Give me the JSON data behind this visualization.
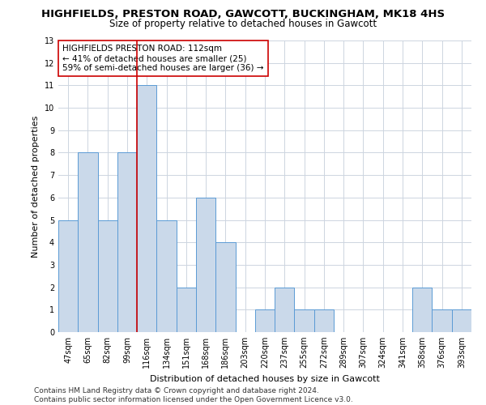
{
  "title": "HIGHFIELDS, PRESTON ROAD, GAWCOTT, BUCKINGHAM, MK18 4HS",
  "subtitle": "Size of property relative to detached houses in Gawcott",
  "xlabel": "Distribution of detached houses by size in Gawcott",
  "ylabel": "Number of detached properties",
  "categories": [
    "47sqm",
    "65sqm",
    "82sqm",
    "99sqm",
    "116sqm",
    "134sqm",
    "151sqm",
    "168sqm",
    "186sqm",
    "203sqm",
    "220sqm",
    "237sqm",
    "255sqm",
    "272sqm",
    "289sqm",
    "307sqm",
    "324sqm",
    "341sqm",
    "358sqm",
    "376sqm",
    "393sqm"
  ],
  "values": [
    5,
    8,
    5,
    8,
    11,
    5,
    2,
    6,
    4,
    0,
    1,
    2,
    1,
    1,
    0,
    0,
    0,
    0,
    2,
    1,
    1
  ],
  "bar_color": "#cad9ea",
  "bar_edge_color": "#5b9bd5",
  "vline_x": 3.5,
  "vline_color": "#cc0000",
  "annotation_text": "HIGHFIELDS PRESTON ROAD: 112sqm\n← 41% of detached houses are smaller (25)\n59% of semi-detached houses are larger (36) →",
  "annotation_box_color": "#ffffff",
  "annotation_box_edge": "#cc0000",
  "ylim": [
    0,
    13
  ],
  "yticks": [
    0,
    1,
    2,
    3,
    4,
    5,
    6,
    7,
    8,
    9,
    10,
    11,
    12,
    13
  ],
  "footer": "Contains HM Land Registry data © Crown copyright and database right 2024.\nContains public sector information licensed under the Open Government Licence v3.0.",
  "bg_color": "#ffffff",
  "grid_color": "#cdd5e0",
  "title_fontsize": 9.5,
  "subtitle_fontsize": 8.5,
  "axis_label_fontsize": 8,
  "tick_fontsize": 7,
  "annotation_fontsize": 7.5,
  "footer_fontsize": 6.5
}
